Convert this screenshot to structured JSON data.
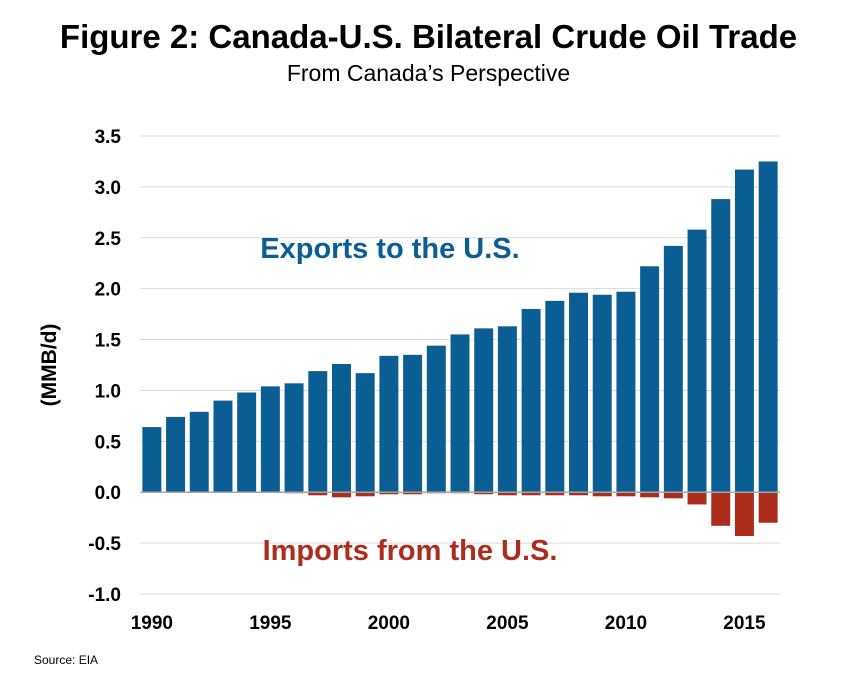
{
  "title": "Figure 2: Canada-U.S. Bilateral Crude Oil Trade",
  "subtitle": "From Canada’s Perspective",
  "source": "Source: EIA",
  "colors": {
    "exports": "#0b5e93",
    "imports": "#ad2d1d",
    "grid": "#d9d9d9",
    "axis": "#a6a6a6"
  },
  "chart_data": {
    "type": "bar",
    "ylabel": "(MMB/d)",
    "ylim": [
      -1.0,
      3.5
    ],
    "yticks": [
      "3.5",
      "3.0",
      "2.5",
      "2.0",
      "1.5",
      "1.0",
      "0.5",
      "0.0",
      "-0.5",
      "-1.0"
    ],
    "xticks": [
      "1990",
      "1995",
      "2000",
      "2005",
      "2010",
      "2015"
    ],
    "grid": "horizontal",
    "categories": [
      1990,
      1991,
      1992,
      1993,
      1994,
      1995,
      1996,
      1997,
      1998,
      1999,
      2000,
      2001,
      2002,
      2003,
      2004,
      2005,
      2006,
      2007,
      2008,
      2009,
      2010,
      2011,
      2012,
      2013,
      2014,
      2015,
      2016
    ],
    "series": [
      {
        "name": "Exports to the U.S.",
        "values": [
          0.64,
          0.74,
          0.79,
          0.9,
          0.98,
          1.04,
          1.07,
          1.19,
          1.26,
          1.17,
          1.34,
          1.35,
          1.44,
          1.55,
          1.61,
          1.63,
          1.8,
          1.88,
          1.96,
          1.94,
          1.97,
          2.22,
          2.42,
          2.58,
          2.88,
          3.17,
          3.25
        ]
      },
      {
        "name": "Imports from the U.S.",
        "values": [
          0.0,
          0.0,
          0.0,
          0.0,
          0.0,
          0.0,
          -0.01,
          -0.03,
          -0.05,
          -0.04,
          -0.02,
          -0.02,
          -0.01,
          -0.01,
          -0.02,
          -0.03,
          -0.03,
          -0.03,
          -0.03,
          -0.04,
          -0.04,
          -0.05,
          -0.06,
          -0.12,
          -0.33,
          -0.43,
          -0.3
        ]
      }
    ]
  }
}
